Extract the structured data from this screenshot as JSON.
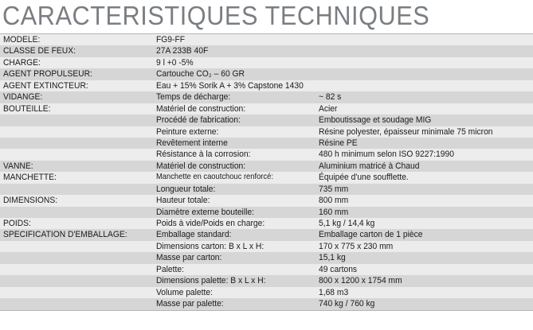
{
  "title": "CARACTERISTIQUES TECHNIQUES",
  "rows": [
    {
      "label": "MODELE:",
      "key": "FG9-FF",
      "value": ""
    },
    {
      "label": "CLASSE DE FEUX:",
      "key": "27A 233B 40F",
      "value": ""
    },
    {
      "label": "CHARGE:",
      "key": "9 l +0  -5%",
      "value": ""
    },
    {
      "label": "AGENT PROPULSEUR:",
      "key": "Cartouche CO₂ – 60 GR",
      "value": ""
    },
    {
      "label": "AGENT EXTINCTEUR:",
      "key": "Eau + 15% Sorik A + 3% Capstone 1430",
      "value": ""
    },
    {
      "label": "VIDANGE:",
      "key": "Temps de décharge:",
      "value": "~ 82 s"
    },
    {
      "label": "BOUTEILLE:",
      "key": "Matériel de construction:",
      "value": "Acier"
    },
    {
      "label": "",
      "key": "Procédé de fabrication:",
      "value": "Emboutissage et soudage MIG"
    },
    {
      "label": "",
      "key": "Peinture externe:",
      "value": "Résine polyester, épaisseur minimale 75 micron"
    },
    {
      "label": "",
      "key": "Revêtement interne",
      "value": "Résine PE"
    },
    {
      "label": "",
      "key": "Résistance à la corrosion:",
      "value": "480 h minimum selon ISO 9227:1990"
    },
    {
      "label": "VANNE:",
      "key": "Matériel de construction:",
      "value": "Aluminium matricé à Chaud"
    },
    {
      "label": "MANCHETTE:",
      "key": "Manchette en caoutchouc renforcé:",
      "value": "Équipée d'une soufflette."
    },
    {
      "label": "",
      "key": "Longueur totale:",
      "value": "735 mm"
    },
    {
      "label": "DIMENSIONS:",
      "key": "Hauteur totale:",
      "value": "800 mm"
    },
    {
      "label": "",
      "key": "Diamètre externe bouteille:",
      "value": "160 mm"
    },
    {
      "label": "POIDS:",
      "key": "Poids à vide/Poids en charge:",
      "value": "5,1 kg / 14,4 kg"
    },
    {
      "label": "SPECIFICATION D'EMBALLAGE:",
      "key": "Emballage standard:",
      "value": "Emballage carton de 1 pièce"
    },
    {
      "label": "",
      "key": "Dimensions carton: B x L x H:",
      "value": "170 x 775 x 230 mm"
    },
    {
      "label": "",
      "key": "Masse par carton:",
      "value": "15,1 kg"
    },
    {
      "label": "",
      "key": "Palette:",
      "value": "49 cartons"
    },
    {
      "label": "",
      "key": "Dimensions palette: B x L x H:",
      "value": "800 x 1200 x 1754 mm"
    },
    {
      "label": "",
      "key": "Volume palette:",
      "value": "1,68 m3"
    },
    {
      "label": "",
      "key": "Masse par palette:",
      "value": "740 kg / 760 kg"
    }
  ]
}
